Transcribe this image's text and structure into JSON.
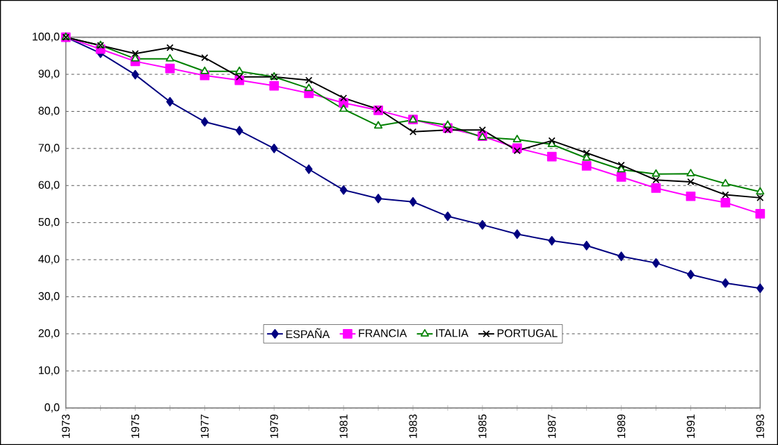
{
  "chart_data": {
    "type": "line",
    "x": [
      1973,
      1974,
      1975,
      1976,
      1977,
      1978,
      1979,
      1980,
      1981,
      1982,
      1983,
      1984,
      1985,
      1986,
      1987,
      1988,
      1989,
      1990,
      1991,
      1992,
      1993
    ],
    "series": [
      {
        "name": "ESPAÑA",
        "color": "#000080",
        "marker": "diamond",
        "values": [
          100,
          95.7,
          89.9,
          82.6,
          77.2,
          74.8,
          70.0,
          64.4,
          58.8,
          56.5,
          55.6,
          51.7,
          49.4,
          46.9,
          45.1,
          43.8,
          40.9,
          39.1,
          36.0,
          33.7,
          32.3
        ]
      },
      {
        "name": "FRANCIA",
        "color": "#ff00ff",
        "marker": "square",
        "values": [
          100,
          96.8,
          93.5,
          91.6,
          89.7,
          88.4,
          86.9,
          84.9,
          82.3,
          80.3,
          77.8,
          75.5,
          73.3,
          70.1,
          67.8,
          65.3,
          62.3,
          59.3,
          57.1,
          55.4,
          52.4
        ]
      },
      {
        "name": "ITALIA",
        "color": "#008000",
        "marker": "triangle",
        "values": [
          100,
          97.8,
          94.2,
          94.2,
          90.8,
          90.8,
          89.3,
          86.2,
          80.6,
          76.1,
          77.7,
          76.3,
          73.0,
          72.4,
          71.1,
          67.4,
          64.3,
          63.1,
          63.2,
          60.5,
          58.3
        ]
      },
      {
        "name": "PORTUGAL",
        "color": "#000000",
        "marker": "cross",
        "values": [
          100,
          97.8,
          95.6,
          97.2,
          94.5,
          89.3,
          89.3,
          88.4,
          83.6,
          80.6,
          74.5,
          75.0,
          75.0,
          69.4,
          72.1,
          68.8,
          65.5,
          61.5,
          61.0,
          57.5,
          56.7
        ]
      }
    ],
    "xlim": [
      1973,
      1993
    ],
    "xticks": [
      1973,
      {
        "value": 1974,
        "label": null
      },
      1975,
      {
        "value": 1976,
        "label": null
      },
      1977,
      {
        "value": 1978,
        "label": null
      },
      1979,
      {
        "value": 1980,
        "label": null
      },
      1981,
      {
        "value": 1982,
        "label": null
      },
      1983,
      {
        "value": 1984,
        "label": null
      },
      1985,
      {
        "value": 1986,
        "label": null
      },
      1987,
      {
        "value": 1988,
        "label": null
      },
      1989,
      {
        "value": 1990,
        "label": null
      },
      1991,
      {
        "value": 1992,
        "label": null
      },
      1993
    ],
    "ylim": [
      0,
      100
    ],
    "yticks": [
      {
        "value": 0,
        "label": "0,0"
      },
      {
        "value": 10,
        "label": "10,0"
      },
      {
        "value": 20,
        "label": "20,0"
      },
      {
        "value": 30,
        "label": "30,0"
      },
      {
        "value": 40,
        "label": "40,0"
      },
      {
        "value": 50,
        "label": "50,0"
      },
      {
        "value": 60,
        "label": "60,0"
      },
      {
        "value": 70,
        "label": "70,0"
      },
      {
        "value": 80,
        "label": "80,0"
      },
      {
        "value": 90,
        "label": "90,0"
      },
      {
        "value": 100,
        "label": "100,0"
      }
    ],
    "grid": "y",
    "legend": "bottom",
    "line_style": "solid"
  }
}
